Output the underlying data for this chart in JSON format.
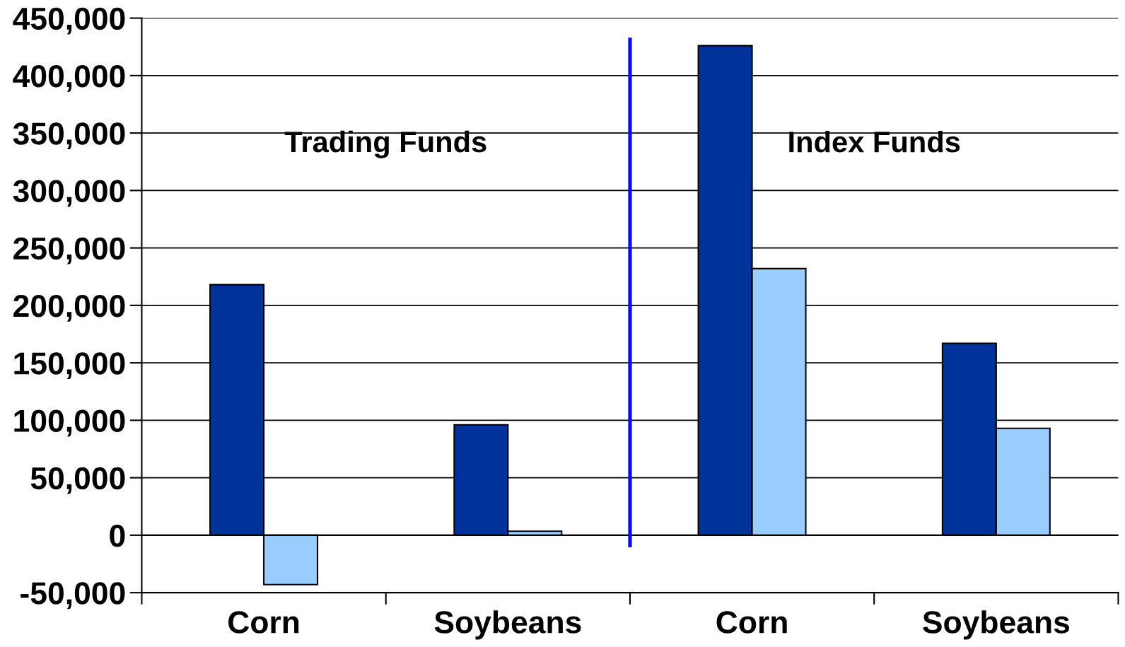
{
  "chart_data": {
    "type": "bar",
    "categories": [
      "Corn",
      "Soybeans",
      "Corn",
      "Soybeans"
    ],
    "series": [
      {
        "color": "#003399",
        "values": [
          218000,
          96000,
          426000,
          167000
        ]
      },
      {
        "color": "#99ccff",
        "values": [
          -43000,
          3500,
          232000,
          93000
        ]
      }
    ],
    "ylim": [
      -50000,
      450000
    ],
    "yticks": [
      {
        "value": -50000,
        "label": "-50,000"
      },
      0,
      {
        "value": 50000,
        "label": "50,000"
      },
      {
        "value": 100000,
        "label": "100,000"
      },
      {
        "value": 150000,
        "label": "150,000"
      },
      {
        "value": 200000,
        "label": "200,000"
      },
      {
        "value": 250000,
        "label": "250,000"
      },
      {
        "value": 300000,
        "label": "300,000"
      },
      {
        "value": 350000,
        "label": "350,000"
      },
      {
        "value": 400000,
        "label": "400,000"
      },
      {
        "value": 450000,
        "label": "450,000"
      }
    ],
    "grid": "y",
    "annotations": [
      "Trading Funds",
      "Index Funds"
    ]
  }
}
